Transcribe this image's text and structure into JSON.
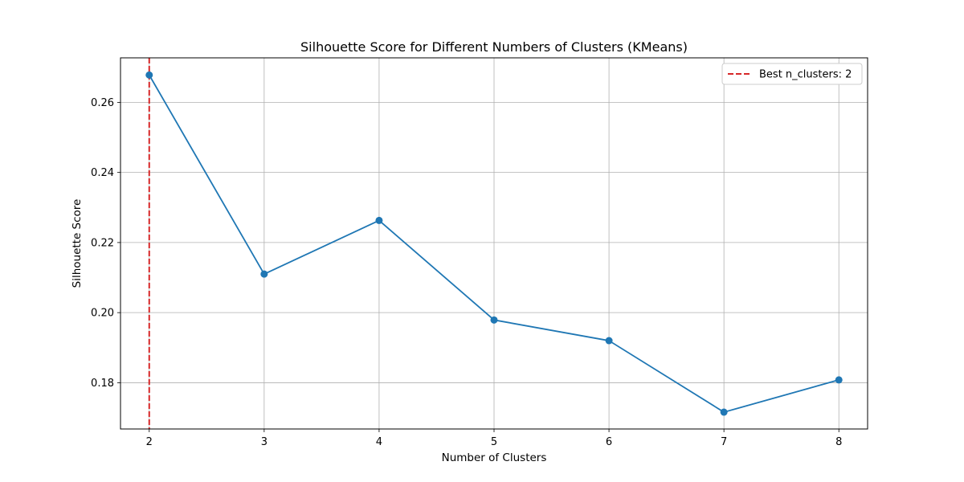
{
  "chart_data": {
    "type": "line",
    "title": "Silhouette Score for Different Numbers of Clusters (KMeans)",
    "xlabel": "Number of Clusters",
    "ylabel": "Silhouette Score",
    "x": [
      2,
      3,
      4,
      5,
      6,
      7,
      8
    ],
    "series": [
      {
        "name": "",
        "values": [
          0.2678,
          0.211,
          0.2263,
          0.1979,
          0.192,
          0.1716,
          0.1808
        ],
        "color": "#1f77b4",
        "marker": "circle"
      }
    ],
    "xticks": [
      "2",
      "3",
      "4",
      "5",
      "6",
      "7",
      "8"
    ],
    "yticks": [
      "0.18",
      "0.20",
      "0.22",
      "0.24",
      "0.26"
    ],
    "xlim": [
      1.75,
      8.25
    ],
    "ylim": [
      0.1668,
      0.2727
    ],
    "grid": true,
    "best_line": {
      "x": 2,
      "color": "#d62728",
      "style": "dashed",
      "label": "Best n_clusters: 2"
    },
    "legend": {
      "position": "top-right",
      "entries": [
        "Best n_clusters: 2"
      ]
    }
  }
}
